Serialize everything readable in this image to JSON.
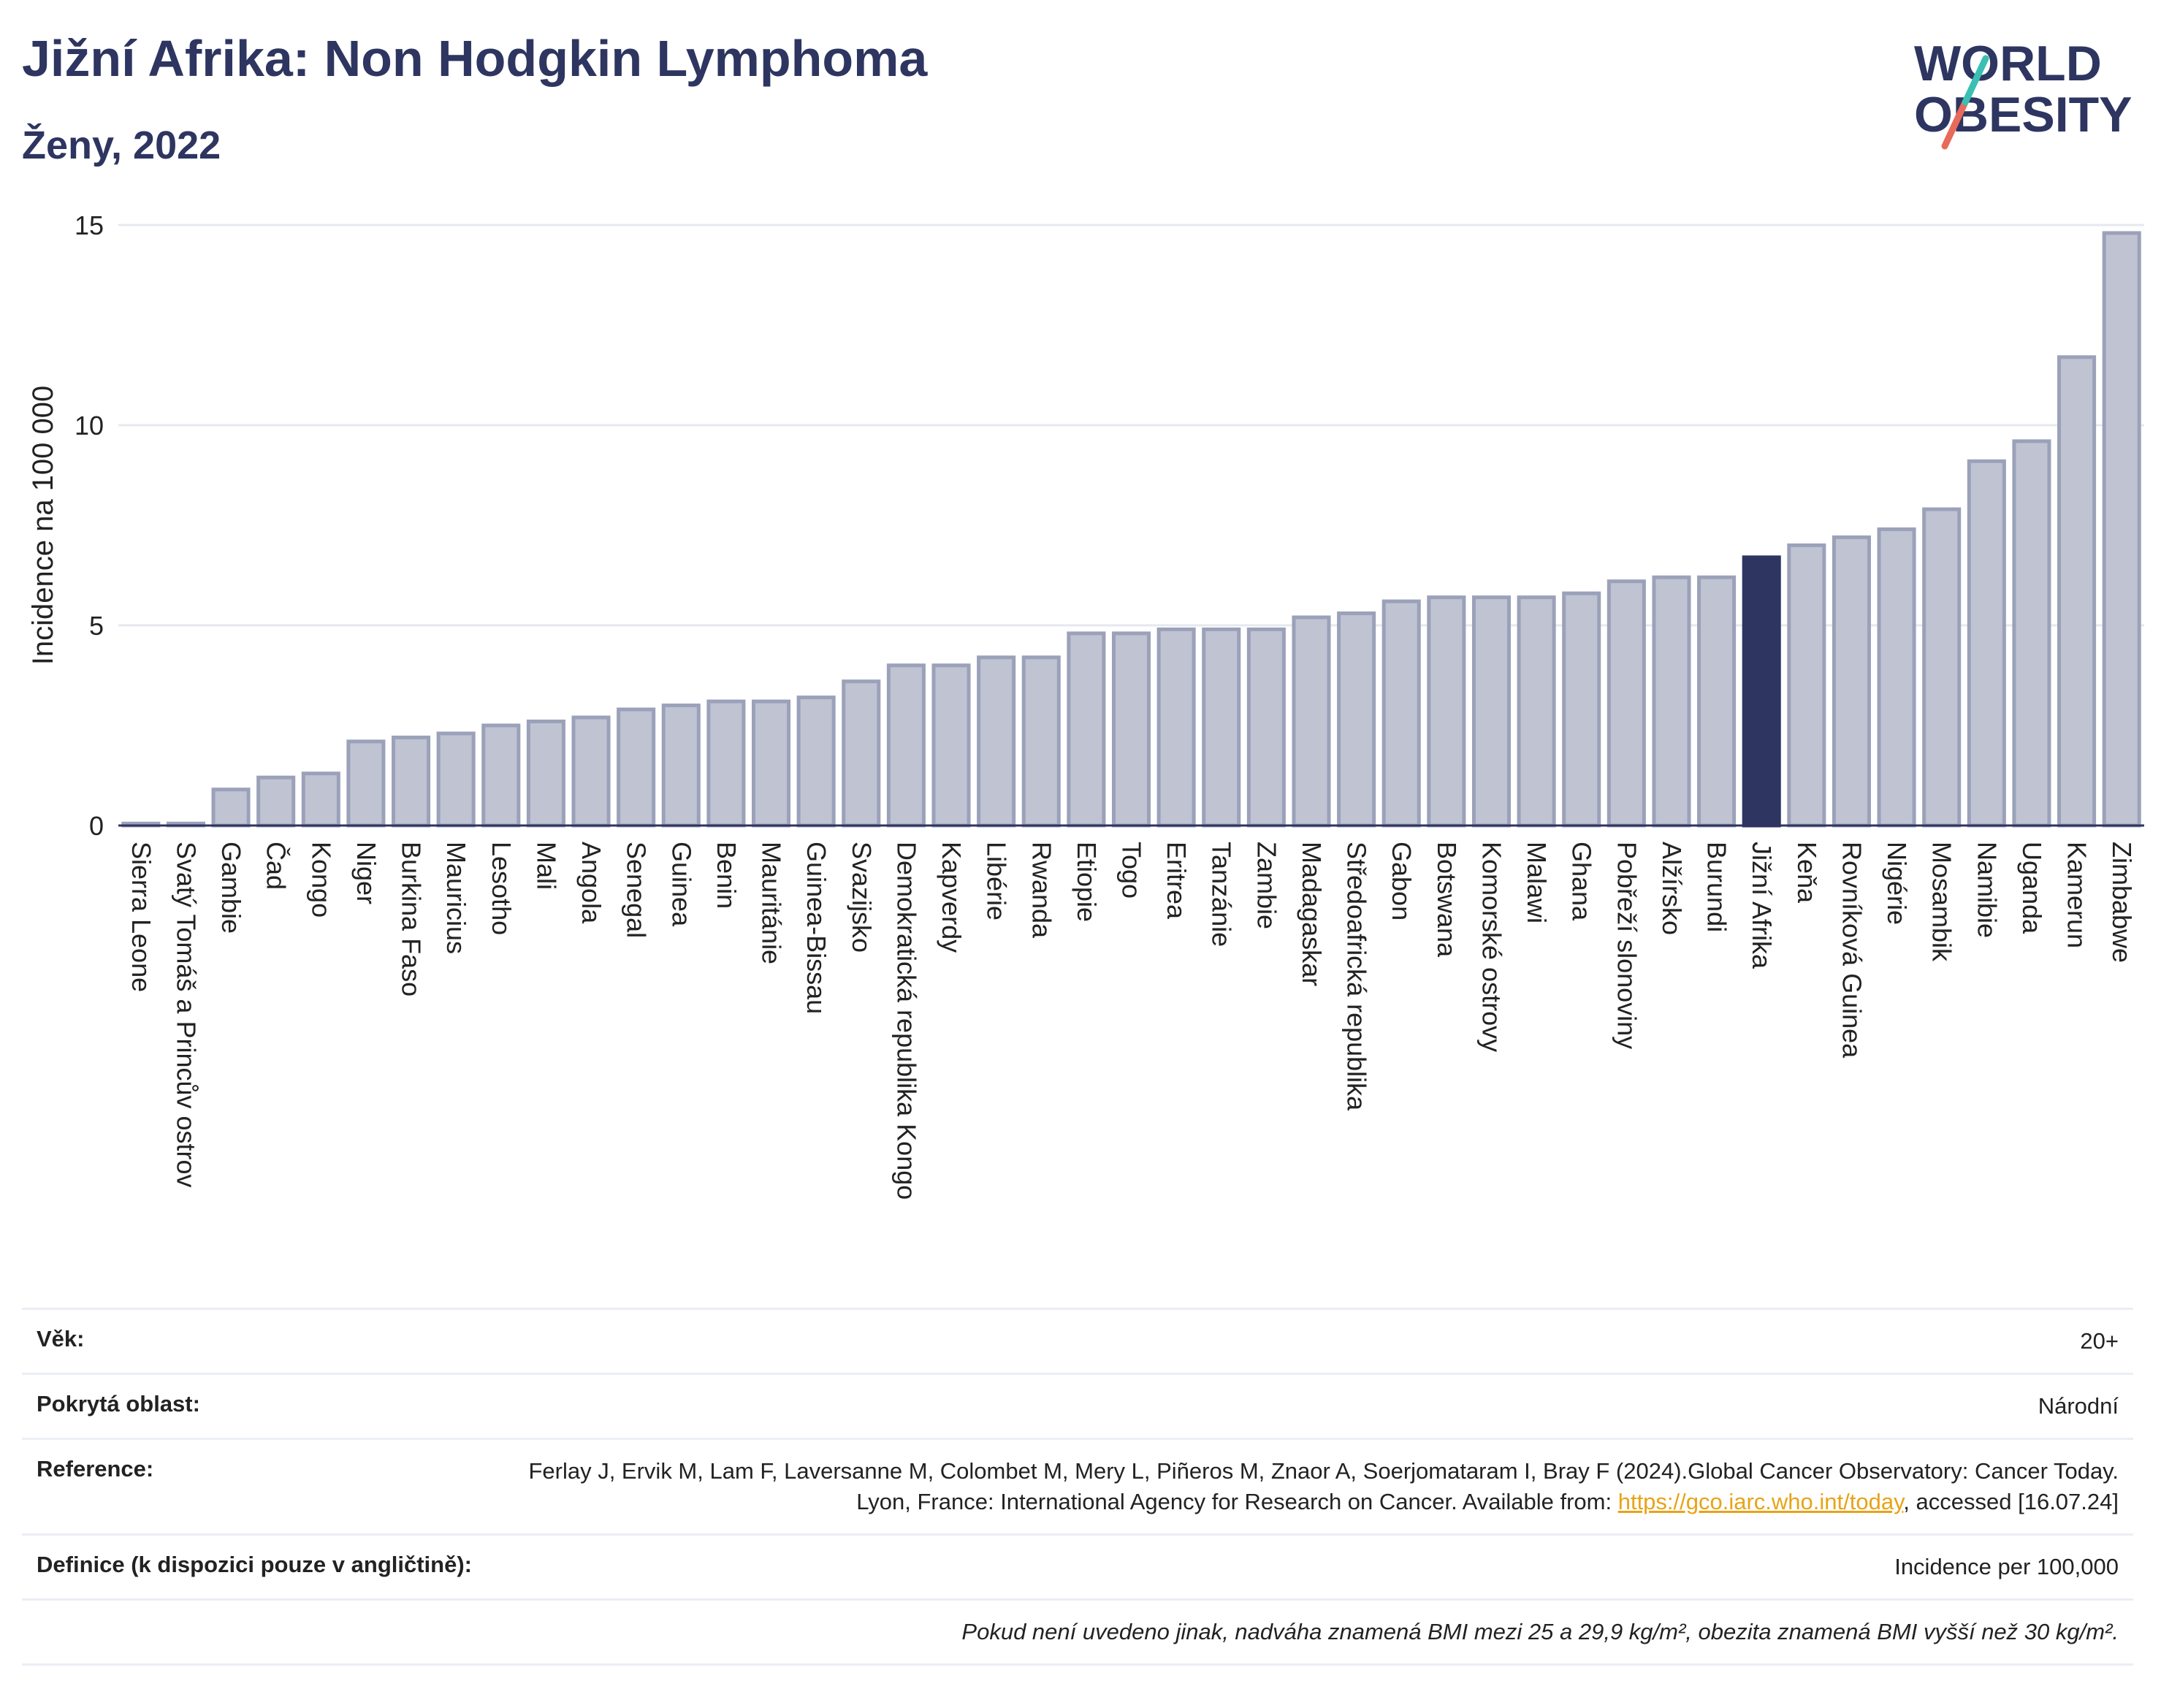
{
  "header": {
    "title": "Jižní Afrika: Non Hodgkin Lymphoma",
    "subtitle": "Ženy, 2022"
  },
  "logo": {
    "line1": "WORLD",
    "line2": "OBESITY",
    "colors": {
      "text": "#2d3560",
      "slash_teal": "#3bbfb3",
      "slash_coral": "#e86a5a"
    }
  },
  "chart_data": {
    "type": "bar",
    "ylabel": "Incidence na 100 000",
    "xlabel": "",
    "ylim": [
      0,
      15
    ],
    "yticks": [
      0,
      5,
      10,
      15
    ],
    "grid": true,
    "highlight_category": "Jižní Afrika",
    "colors": {
      "bar": "#bfc3d2",
      "bar_stroke": "#9ba1b9",
      "highlight": "#2d3560",
      "grid": "#e6e8f0",
      "axis": "#2d3560"
    },
    "categories": [
      "Sierra Leone",
      "Svatý Tomáš a Princův ostrov",
      "Gambie",
      "Čad",
      "Kongo",
      "Niger",
      "Burkina Faso",
      "Mauricius",
      "Lesotho",
      "Mali",
      "Angola",
      "Senegal",
      "Guinea",
      "Benin",
      "Mauritánie",
      "Guinea-Bissau",
      "Svazijsko",
      "Demokratická republika Kongo",
      "Kapverdy",
      "Libérie",
      "Rwanda",
      "Etiopie",
      "Togo",
      "Eritrea",
      "Tanzánie",
      "Zambie",
      "Madagaskar",
      "Středoafrická republika",
      "Gabon",
      "Botswana",
      "Komorské ostrovy",
      "Malawi",
      "Ghana",
      "Pobřeží slonoviny",
      "Alžírsko",
      "Burundi",
      "Jižní Afrika",
      "Keňa",
      "Rovníková Guinea",
      "Nigérie",
      "Mosambik",
      "Namibie",
      "Uganda",
      "Kamerun",
      "Zimbabwe"
    ],
    "values": [
      0.05,
      0.05,
      0.9,
      1.2,
      1.3,
      2.1,
      2.2,
      2.3,
      2.5,
      2.6,
      2.7,
      2.9,
      3.0,
      3.1,
      3.1,
      3.2,
      3.6,
      4.0,
      4.0,
      4.2,
      4.2,
      4.8,
      4.8,
      4.9,
      4.9,
      4.9,
      5.2,
      5.3,
      5.6,
      5.7,
      5.7,
      5.7,
      5.8,
      6.1,
      6.2,
      6.2,
      6.7,
      7.0,
      7.2,
      7.4,
      7.9,
      9.1,
      9.6,
      11.7,
      14.8
    ]
  },
  "meta": {
    "age_label": "Věk:",
    "age_value": "20+",
    "area_label": "Pokrytá oblast:",
    "area_value": "Národní",
    "ref_label": "Reference:",
    "ref_text_1": "Ferlay J, Ervik M, Lam F, Laversanne M, Colombet M, Mery L, Piñeros M, Znaor A, Soerjomataram I, Bray F (2024).Global Cancer Observatory: Cancer Today. Lyon, France: International Agency for Research on Cancer. Available from: ",
    "ref_link": "https://gco.iarc.who.int/today",
    "ref_text_2": ", accessed [16.07.24]",
    "def_label": "Definice (k dispozici pouze v angličtině):",
    "def_value": "Incidence per 100,000",
    "note": "Pokud není uvedeno jinak, nadváha znamená BMI mezi 25 a 29,9 kg/m², obezita znamená BMI vyšší než 30 kg/m²."
  }
}
